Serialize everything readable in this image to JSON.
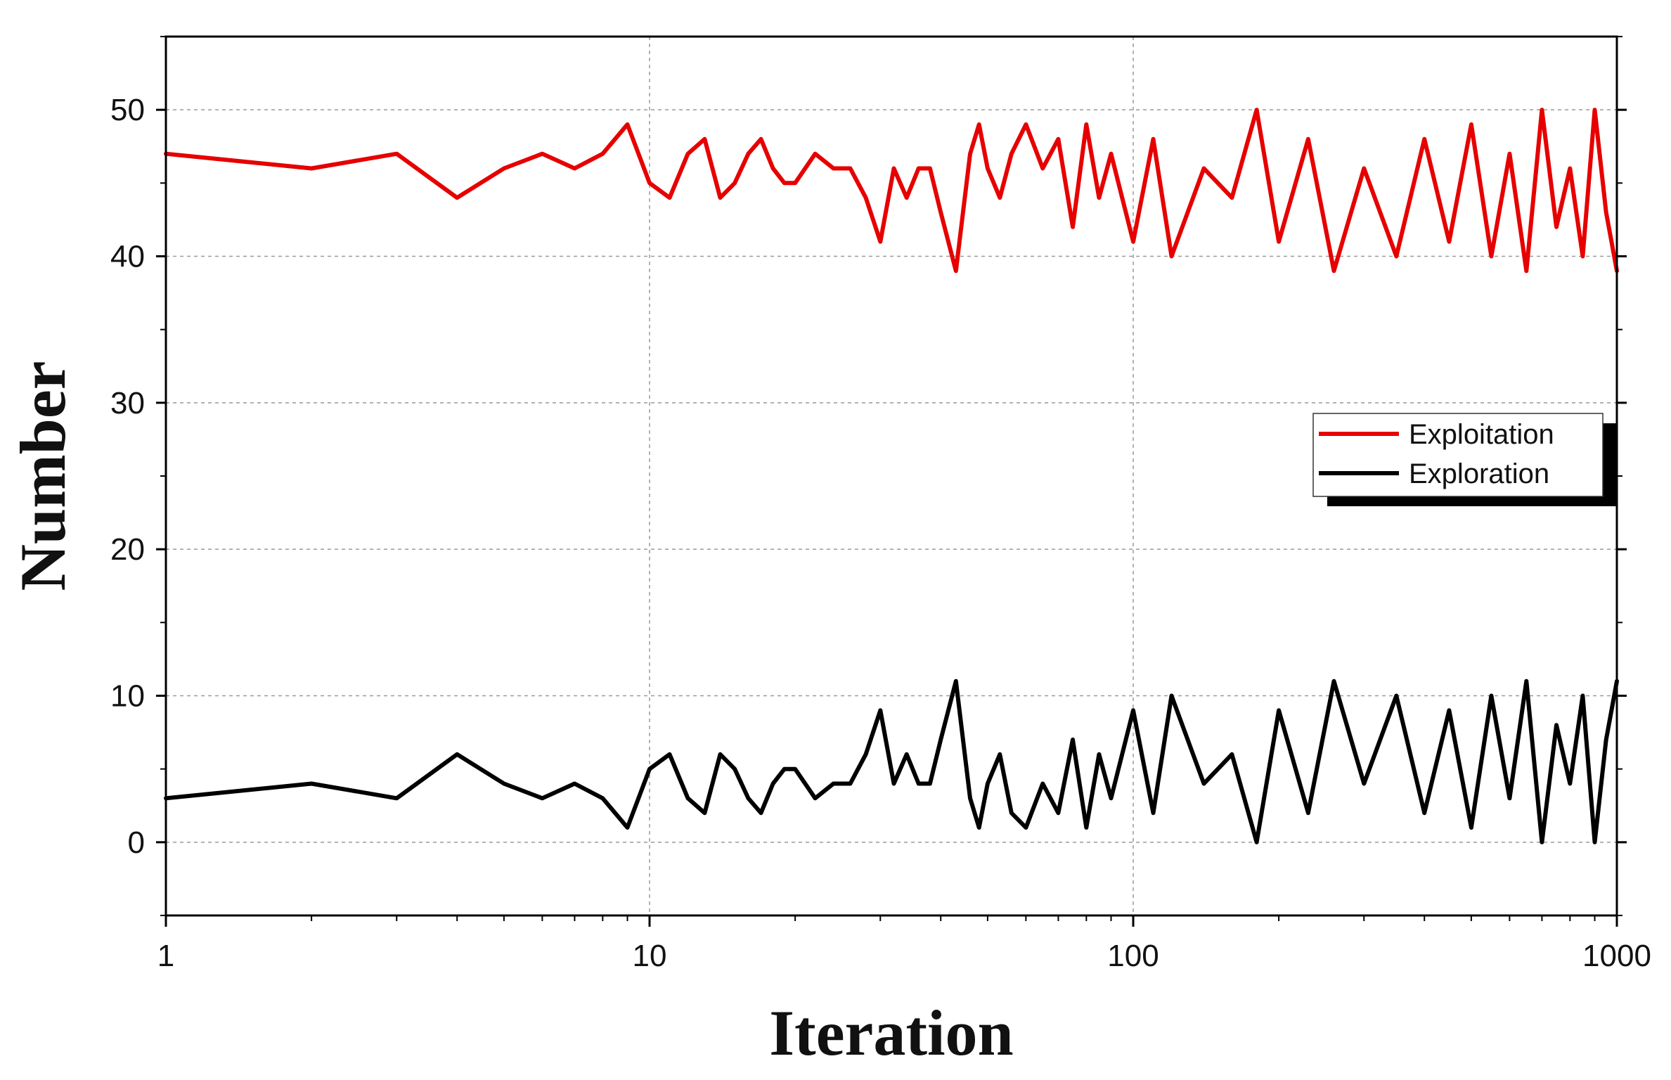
{
  "chart_data": {
    "type": "line",
    "xlabel": "Iteration",
    "ylabel": "Number",
    "x_scale": "log",
    "xlim": [
      1,
      1000
    ],
    "ylim": [
      -5,
      55
    ],
    "x_ticks": [
      "1",
      "10",
      "100",
      "1000"
    ],
    "y_ticks": [
      "0",
      "10",
      "20",
      "30",
      "40",
      "50"
    ],
    "grid": true,
    "legend_position": "right",
    "series": [
      {
        "name": "Exploitation",
        "color": "#e60000",
        "x": [
          1,
          2,
          3,
          4,
          5,
          6,
          7,
          8,
          9,
          10,
          11,
          12,
          13,
          14,
          15,
          16,
          17,
          18,
          19,
          20,
          22,
          24,
          26,
          28,
          30,
          32,
          34,
          36,
          38,
          40,
          43,
          46,
          48,
          50,
          53,
          56,
          60,
          65,
          70,
          75,
          80,
          85,
          90,
          100,
          110,
          120,
          140,
          160,
          180,
          200,
          230,
          260,
          300,
          350,
          400,
          450,
          500,
          550,
          600,
          650,
          700,
          750,
          800,
          850,
          900,
          950,
          1000
        ],
        "values": [
          47,
          46,
          47,
          44,
          46,
          47,
          46,
          47,
          49,
          45,
          44,
          47,
          48,
          44,
          45,
          47,
          48,
          46,
          45,
          45,
          47,
          46,
          46,
          44,
          41,
          46,
          44,
          46,
          46,
          43,
          39,
          47,
          49,
          46,
          44,
          47,
          49,
          46,
          48,
          42,
          49,
          44,
          47,
          41,
          48,
          40,
          46,
          44,
          50,
          41,
          48,
          39,
          46,
          40,
          48,
          41,
          49,
          40,
          47,
          39,
          50,
          42,
          46,
          40,
          50,
          43,
          39
        ]
      },
      {
        "name": "Exploration",
        "color": "#000000",
        "x": [
          1,
          2,
          3,
          4,
          5,
          6,
          7,
          8,
          9,
          10,
          11,
          12,
          13,
          14,
          15,
          16,
          17,
          18,
          19,
          20,
          22,
          24,
          26,
          28,
          30,
          32,
          34,
          36,
          38,
          40,
          43,
          46,
          48,
          50,
          53,
          56,
          60,
          65,
          70,
          75,
          80,
          85,
          90,
          100,
          110,
          120,
          140,
          160,
          180,
          200,
          230,
          260,
          300,
          350,
          400,
          450,
          500,
          550,
          600,
          650,
          700,
          750,
          800,
          850,
          900,
          950,
          1000
        ],
        "values": [
          3,
          4,
          3,
          6,
          4,
          3,
          4,
          3,
          1,
          5,
          6,
          3,
          2,
          6,
          5,
          3,
          2,
          4,
          5,
          5,
          3,
          4,
          4,
          6,
          9,
          4,
          6,
          4,
          4,
          7,
          11,
          3,
          1,
          4,
          6,
          2,
          1,
          4,
          2,
          7,
          1,
          6,
          3,
          9,
          2,
          10,
          4,
          6,
          0,
          9,
          2,
          11,
          4,
          10,
          2,
          9,
          1,
          10,
          3,
          11,
          0,
          8,
          4,
          10,
          0,
          7,
          11
        ]
      }
    ]
  }
}
